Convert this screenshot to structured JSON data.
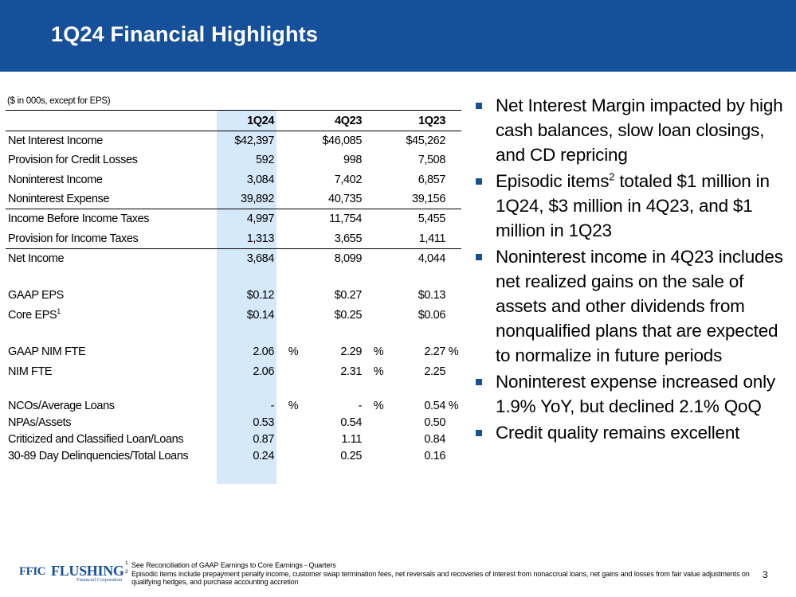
{
  "slide": {
    "title": "1Q24 Financial Highlights",
    "page_number": "3",
    "accent_color": "#17509a",
    "highlight_color": "#d6e9fa"
  },
  "table": {
    "units_note": "($ in 000s, except for EPS)",
    "headers": [
      "1Q24",
      "4Q23",
      "1Q23"
    ],
    "rows": {
      "nii": {
        "label": "Net Interest Income",
        "q1": "$42,397",
        "q4": "$46,085",
        "q3": "$45,262"
      },
      "pcl": {
        "label": "Provision for Credit Losses",
        "q1": "592",
        "q4": "998",
        "q3": "7,508"
      },
      "noninc": {
        "label": "Noninterest Income",
        "q1": "3,084",
        "q4": "7,402",
        "q3": "6,857"
      },
      "nonexp": {
        "label": "Noninterest Expense",
        "q1": "39,892",
        "q4": "40,735",
        "q3": "39,156"
      },
      "ibt": {
        "label": "Income Before Income Taxes",
        "q1": "4,997",
        "q4": "11,754",
        "q3": "5,455"
      },
      "pit": {
        "label": "Provision for Income Taxes",
        "q1": "1,313",
        "q4": "3,655",
        "q3": "1,411"
      },
      "ni": {
        "label": "Net Income",
        "q1": "3,684",
        "q4": "8,099",
        "q3": "4,044"
      },
      "gaap_eps": {
        "label": "GAAP EPS",
        "q1": "$0.12",
        "q4": "$0.27",
        "q3": "$0.13"
      },
      "core_eps": {
        "label": "Core EPS",
        "sup": "1",
        "q1": "$0.14",
        "q4": "$0.25",
        "q3": "$0.06"
      },
      "gaap_nim": {
        "label": "GAAP NIM FTE",
        "q1": "2.06",
        "q4": "2.29",
        "q3": "2.27",
        "p1": "%",
        "p2": "%",
        "p3": "%"
      },
      "nim": {
        "label": "NIM FTE",
        "q1": "2.06",
        "q4": "2.31",
        "q3": "2.25",
        "p2": "%"
      },
      "ncos": {
        "label": "NCOs/Average Loans",
        "q1": "-",
        "q4": "-",
        "q3": "0.54",
        "p1": "%",
        "p2": "%",
        "p3": "%"
      },
      "npas": {
        "label": "NPAs/Assets",
        "q1": "0.53",
        "q4": "0.54",
        "q3": "0.50"
      },
      "crit": {
        "label": "Criticized and Classified Loan/Loans",
        "q1": "0.87",
        "q4": "1.11",
        "q3": "0.84"
      },
      "delinq": {
        "label": "30-89 Day Delinquencies/Total Loans",
        "q1": "0.24",
        "q4": "0.25",
        "q3": "0.16"
      }
    }
  },
  "bullets": {
    "b1": "Net Interest Margin impacted by high cash balances, slow loan closings, and CD repricing",
    "b2_pre": "Episodic items",
    "b2_sup": "2",
    "b2_post": " totaled $1 million in 1Q24, $3 million in 4Q23, and $1 million in 1Q23",
    "b3": "Noninterest income in 4Q23 includes net realized gains on the sale of assets and other dividends from nonqualified plans that are expected to normalize in future periods",
    "b4": "Noninterest expense increased only 1.9% YoY, but declined 2.1% QoQ",
    "b5": "Credit quality remains excellent"
  },
  "logo": {
    "ffic": "FFIC",
    "flushing": "FLUSHING",
    "corp": "Financial Corporation"
  },
  "footnotes": {
    "n1": "1",
    "t1": "See Reconciliation of GAAP Earnings to Core Earnings - Quarters",
    "n2": "2",
    "t2": "Episodic items include prepayment penalty income, customer swap termination fees, net reversals and recoveries of interest from nonaccrual loans, net gains and losses from fair value adjustments on qualifying hedges, and purchase accounting accretion"
  }
}
